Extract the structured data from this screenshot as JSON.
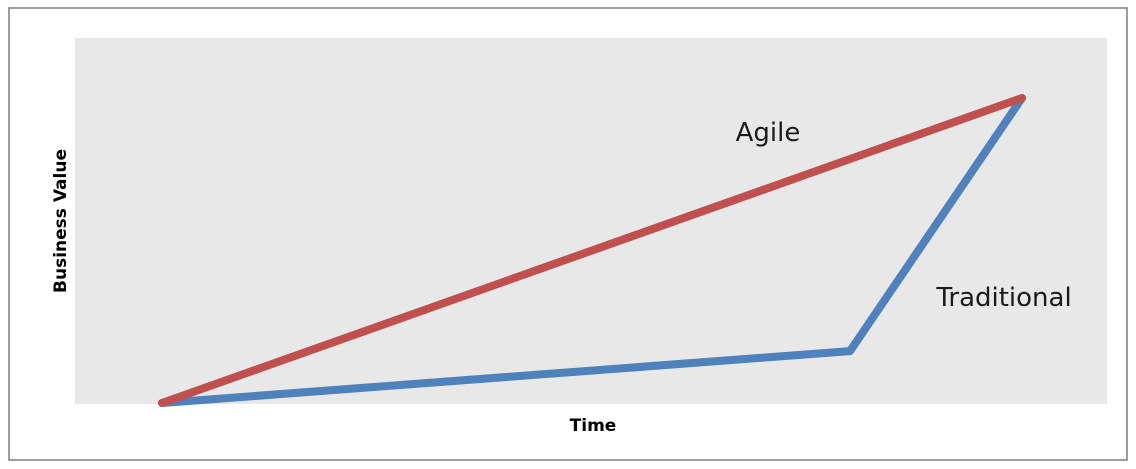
{
  "colors": {
    "background": "#ffffff",
    "frame": "#7f7f7f",
    "plot_area": "#e8e8e8",
    "agile": "#c0504d",
    "traditional": "#4f81bd"
  },
  "chart_data": {
    "type": "line",
    "title": "",
    "xlabel": "Time",
    "ylabel": "Business Value",
    "xlim": [
      0,
      100
    ],
    "ylim": [
      0,
      100
    ],
    "grid": false,
    "legend": "none",
    "series": [
      {
        "name": "Agile",
        "color": "#c0504d",
        "x": [
          0,
          100
        ],
        "y": [
          0,
          100
        ]
      },
      {
        "name": "Traditional",
        "color": "#4f81bd",
        "x": [
          0,
          80,
          100
        ],
        "y": [
          0,
          17,
          100
        ]
      }
    ]
  }
}
